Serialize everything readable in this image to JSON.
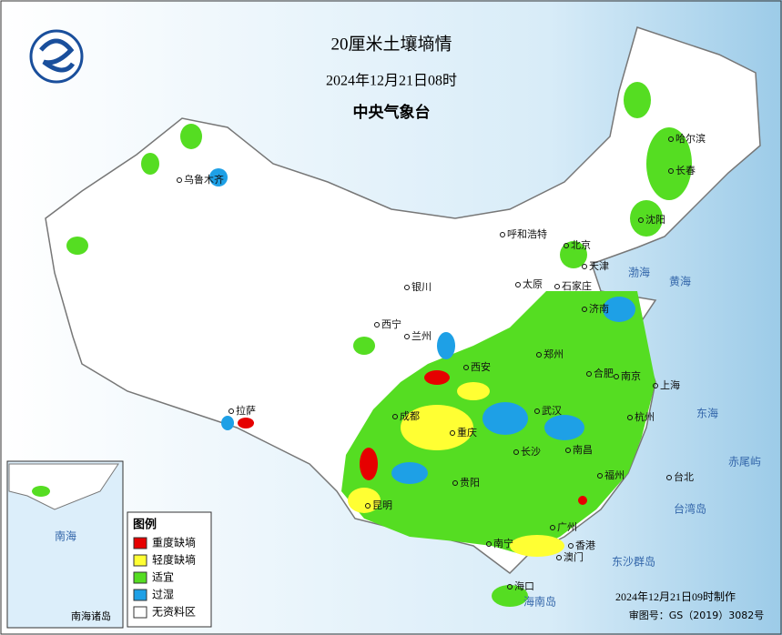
{
  "header": {
    "title": "20厘米土壤墒情",
    "time": "2024年12月21日08时",
    "issuer": "中央气象台"
  },
  "legend": {
    "title": "图例",
    "items": [
      {
        "label": "重度缺墒",
        "color": "#e60000"
      },
      {
        "label": "轻度缺墒",
        "color": "#ffff33"
      },
      {
        "label": "适宜",
        "color": "#55dd22"
      },
      {
        "label": "过湿",
        "color": "#1ea0e6"
      },
      {
        "label": "无资料区",
        "color": "#ffffff"
      }
    ]
  },
  "cities": [
    "哈尔滨",
    "长春",
    "沈阳",
    "乌鲁木齐",
    "呼和浩特",
    "北京",
    "天津",
    "太原",
    "石家庄",
    "济南",
    "银川",
    "西宁",
    "兰州",
    "西安",
    "郑州",
    "合肥",
    "南京",
    "上海",
    "杭州",
    "武汉",
    "成都",
    "重庆",
    "长沙",
    "南昌",
    "福州",
    "台北",
    "贵阳",
    "昆明",
    "广州",
    "香港",
    "澳门",
    "南宁",
    "海口",
    "拉萨"
  ],
  "seas": [
    "黄海",
    "东海",
    "南海",
    "台湾岛",
    "海南岛",
    "赤尾屿",
    "东沙群岛",
    "渤海"
  ],
  "inset": {
    "label": "南海诸岛"
  },
  "footer": {
    "made": "2024年12月21日09时制作",
    "approval": "审图号：GS（2019）3082号"
  }
}
